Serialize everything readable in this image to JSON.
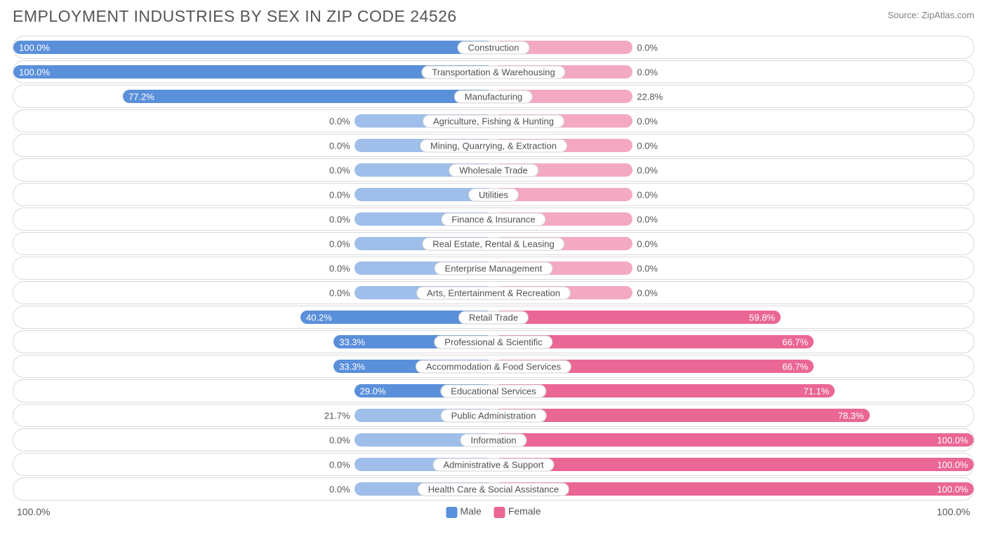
{
  "title": "EMPLOYMENT INDUSTRIES BY SEX IN ZIP CODE 24526",
  "source": "Source: ZipAtlas.com",
  "colors": {
    "male_dark": "#5a8fda",
    "male_light": "#9fbee9",
    "female_dark": "#ea6695",
    "female_light": "#f4a9c2",
    "border": "#d9d9d9",
    "text": "#555555",
    "bg": "#ffffff"
  },
  "axis": {
    "left": "100.0%",
    "right": "100.0%"
  },
  "legend": {
    "male": "Male",
    "female": "Female"
  },
  "min_bar_pct": 29.0,
  "rows": [
    {
      "label": "Construction",
      "male": 100.0,
      "female": 0.0
    },
    {
      "label": "Transportation & Warehousing",
      "male": 100.0,
      "female": 0.0
    },
    {
      "label": "Manufacturing",
      "male": 77.2,
      "female": 22.8
    },
    {
      "label": "Agriculture, Fishing & Hunting",
      "male": 0.0,
      "female": 0.0
    },
    {
      "label": "Mining, Quarrying, & Extraction",
      "male": 0.0,
      "female": 0.0
    },
    {
      "label": "Wholesale Trade",
      "male": 0.0,
      "female": 0.0
    },
    {
      "label": "Utilities",
      "male": 0.0,
      "female": 0.0
    },
    {
      "label": "Finance & Insurance",
      "male": 0.0,
      "female": 0.0
    },
    {
      "label": "Real Estate, Rental & Leasing",
      "male": 0.0,
      "female": 0.0
    },
    {
      "label": "Enterprise Management",
      "male": 0.0,
      "female": 0.0
    },
    {
      "label": "Arts, Entertainment & Recreation",
      "male": 0.0,
      "female": 0.0
    },
    {
      "label": "Retail Trade",
      "male": 40.2,
      "female": 59.8
    },
    {
      "label": "Professional & Scientific",
      "male": 33.3,
      "female": 66.7
    },
    {
      "label": "Accommodation & Food Services",
      "male": 33.3,
      "female": 66.7
    },
    {
      "label": "Educational Services",
      "male": 29.0,
      "female": 71.1
    },
    {
      "label": "Public Administration",
      "male": 21.7,
      "female": 78.3
    },
    {
      "label": "Information",
      "male": 0.0,
      "female": 100.0
    },
    {
      "label": "Administrative & Support",
      "male": 0.0,
      "female": 100.0
    },
    {
      "label": "Health Care & Social Assistance",
      "male": 0.0,
      "female": 100.0
    }
  ]
}
